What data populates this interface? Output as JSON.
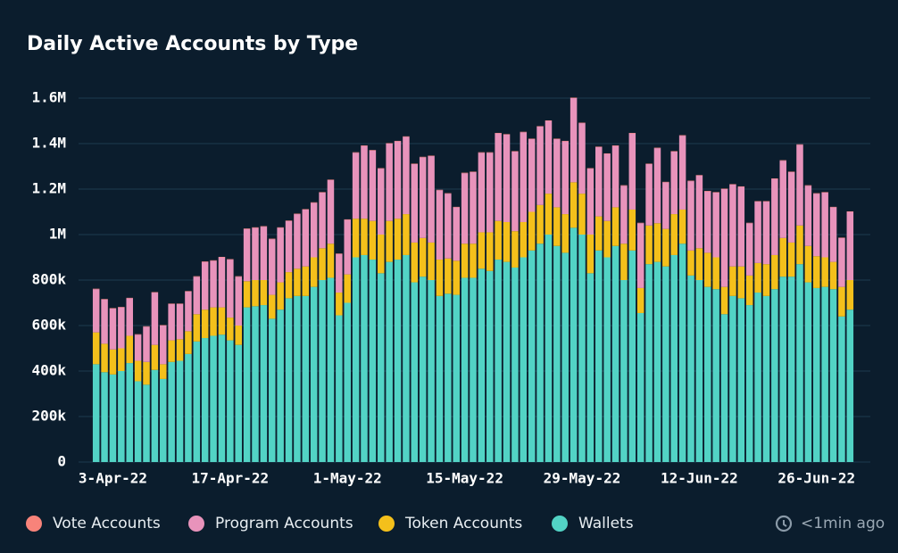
{
  "chart_data": {
    "type": "stacked_bar",
    "title": "Daily Active Accounts by Type",
    "categories": [
      null,
      null,
      "3-Apr-22",
      null,
      null,
      null,
      null,
      null,
      null,
      null,
      null,
      null,
      null,
      null,
      null,
      null,
      "17-Apr-22",
      null,
      null,
      null,
      null,
      null,
      null,
      null,
      null,
      null,
      null,
      null,
      null,
      null,
      "1-May-22",
      null,
      null,
      null,
      null,
      null,
      null,
      null,
      null,
      null,
      null,
      null,
      null,
      null,
      "15-May-22",
      null,
      null,
      null,
      null,
      null,
      null,
      null,
      null,
      null,
      null,
      null,
      null,
      null,
      "29-May-22",
      null,
      null,
      null,
      null,
      null,
      null,
      null,
      null,
      null,
      null,
      null,
      null,
      null,
      "12-Jun-22",
      null,
      null,
      null,
      null,
      null,
      null,
      null,
      null,
      null,
      null,
      null,
      null,
      null,
      "26-Jun-22",
      null,
      null,
      null,
      null
    ],
    "series": [
      {
        "name": "Vote Accounts",
        "color": "#f8837a",
        "values": [
          2000,
          2000,
          2000,
          2000,
          2000,
          2000,
          2000,
          2000,
          2000,
          2000,
          2000,
          2000,
          2000,
          2000,
          2000,
          2000,
          2000,
          2000,
          2000,
          2000,
          2000,
          2000,
          2000,
          2000,
          2000,
          2000,
          2000,
          2000,
          2000,
          2000,
          2000,
          2000,
          2000,
          2000,
          2000,
          2000,
          2000,
          2000,
          2000,
          2000,
          2000,
          2000,
          2000,
          2000,
          2000,
          2000,
          2000,
          2000,
          2000,
          2000,
          2000,
          2000,
          2000,
          2000,
          2000,
          2000,
          2000,
          2000,
          2000,
          2000,
          2000,
          2000,
          2000,
          2000,
          2000,
          2000,
          2000,
          2000,
          2000,
          2000,
          2000,
          2000,
          2000,
          2000,
          2000,
          2000,
          2000,
          2000,
          2000,
          2000,
          2000,
          2000,
          2000,
          2000,
          2000,
          2000,
          2000,
          2000,
          2000,
          2000,
          2000
        ]
      },
      {
        "name": "Program Accounts",
        "color": "#e893bb",
        "values": [
          190000,
          195000,
          180000,
          180000,
          165000,
          115000,
          155000,
          230000,
          170000,
          160000,
          155000,
          175000,
          165000,
          210000,
          205000,
          220000,
          255000,
          215000,
          230000,
          230000,
          235000,
          245000,
          240000,
          225000,
          240000,
          250000,
          240000,
          245000,
          280000,
          170000,
          240000,
          290000,
          320000,
          310000,
          290000,
          340000,
          340000,
          340000,
          345000,
          355000,
          380000,
          305000,
          285000,
          235000,
          310000,
          315000,
          350000,
          350000,
          385000,
          385000,
          350000,
          395000,
          320000,
          345000,
          320000,
          300000,
          320000,
          370000,
          310000,
          290000,
          305000,
          295000,
          270000,
          255000,
          335000,
          285000,
          270000,
          330000,
          205000,
          275000,
          325000,
          305000,
          320000,
          270000,
          285000,
          430000,
          360000,
          350000,
          230000,
          270000,
          275000,
          335000,
          340000,
          310000,
          355000,
          265000,
          275000,
          285000,
          240000,
          215000,
          300000
        ]
      },
      {
        "name": "Token Accounts",
        "color": "#f4c01b",
        "values": [
          140000,
          125000,
          110000,
          100000,
          120000,
          90000,
          100000,
          110000,
          65000,
          95000,
          95000,
          100000,
          120000,
          125000,
          125000,
          120000,
          100000,
          85000,
          115000,
          115000,
          110000,
          105000,
          120000,
          115000,
          120000,
          130000,
          130000,
          140000,
          150000,
          100000,
          125000,
          170000,
          160000,
          170000,
          170000,
          180000,
          180000,
          180000,
          175000,
          170000,
          165000,
          160000,
          155000,
          150000,
          150000,
          150000,
          160000,
          170000,
          170000,
          175000,
          160000,
          155000,
          170000,
          170000,
          180000,
          170000,
          170000,
          200000,
          180000,
          170000,
          150000,
          160000,
          170000,
          160000,
          180000,
          110000,
          170000,
          170000,
          165000,
          180000,
          150000,
          110000,
          140000,
          150000,
          140000,
          120000,
          130000,
          140000,
          130000,
          130000,
          140000,
          150000,
          170000,
          150000,
          170000,
          160000,
          140000,
          130000,
          120000,
          130000,
          130000
        ]
      },
      {
        "name": "Wallets",
        "color": "#52d3c5",
        "values": [
          430000,
          395000,
          385000,
          400000,
          435000,
          355000,
          340000,
          405000,
          365000,
          440000,
          445000,
          475000,
          530000,
          545000,
          555000,
          560000,
          535000,
          515000,
          680000,
          685000,
          690000,
          630000,
          670000,
          720000,
          730000,
          730000,
          770000,
          800000,
          810000,
          645000,
          700000,
          900000,
          910000,
          890000,
          830000,
          880000,
          890000,
          910000,
          790000,
          815000,
          800000,
          730000,
          740000,
          735000,
          810000,
          810000,
          850000,
          840000,
          890000,
          880000,
          855000,
          900000,
          930000,
          960000,
          1000000,
          950000,
          920000,
          1030000,
          1000000,
          830000,
          930000,
          900000,
          950000,
          800000,
          930000,
          655000,
          870000,
          880000,
          860000,
          910000,
          960000,
          820000,
          800000,
          770000,
          760000,
          650000,
          730000,
          720000,
          690000,
          745000,
          730000,
          760000,
          815000,
          815000,
          870000,
          790000,
          765000,
          770000,
          760000,
          640000,
          670000
        ]
      }
    ],
    "ylim": [
      0,
      1600000
    ],
    "yticks": [
      0,
      {
        "value": 200000,
        "label": "200k"
      },
      {
        "value": 400000,
        "label": "400k"
      },
      {
        "value": 600000,
        "label": "600k"
      },
      {
        "value": 800000,
        "label": "800k"
      },
      {
        "value": 1000000,
        "label": "1M"
      },
      {
        "value": 1200000,
        "label": "1.2M"
      },
      {
        "value": 1400000,
        "label": "1.4M"
      },
      {
        "value": 1600000,
        "label": "1.6M"
      }
    ],
    "grid": true,
    "updated": "<1min ago"
  }
}
